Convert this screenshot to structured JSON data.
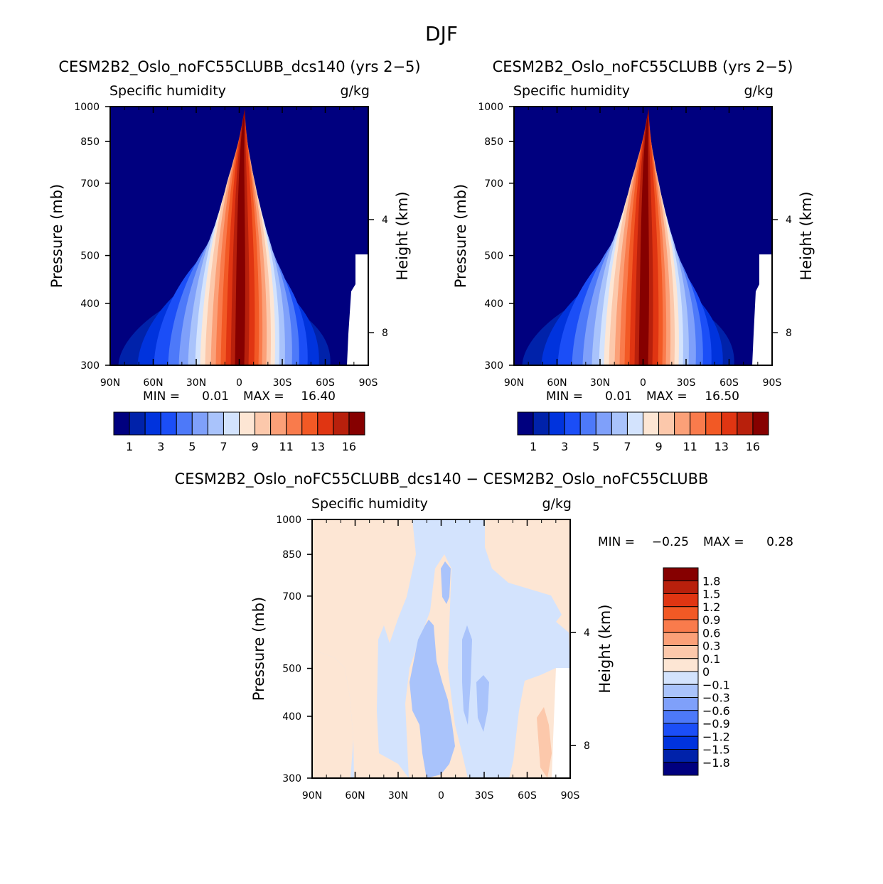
{
  "figure": {
    "season": "DJF"
  },
  "chart_data": [
    {
      "id": "panel-a",
      "type": "contour",
      "title": "CESM2B2_Oslo_noFC55CLUBB_dcs140 (yrs 2−5)",
      "left_label": "Specific humidity",
      "units": "g/kg",
      "ylabel": "Pressure (mb)",
      "ylabel_right": "Height (km)",
      "x_ticks": [
        "90N",
        "60N",
        "30N",
        "0",
        "30S",
        "60S",
        "90S"
      ],
      "y_ticks": [
        "300",
        "400",
        "500",
        "700",
        "850",
        "1000"
      ],
      "y2_ticks": [
        "8",
        "4"
      ],
      "xlim": [
        90,
        -90
      ],
      "ylim": [
        1000,
        300
      ],
      "stats": {
        "min_label": "MIN =",
        "min": "0.01",
        "max_label": "MAX =",
        "max": "16.40"
      },
      "colorbar_labels": [
        "1",
        "3",
        "5",
        "7",
        "9",
        "11",
        "13",
        "16"
      ],
      "peak": {
        "lat": 0,
        "p": 1000,
        "value": 16.4
      }
    },
    {
      "id": "panel-b",
      "type": "contour",
      "title": "CESM2B2_Oslo_noFC55CLUBB (yrs 2−5)",
      "left_label": "Specific humidity",
      "units": "g/kg",
      "ylabel": "Pressure (mb)",
      "ylabel_right": "Height (km)",
      "x_ticks": [
        "90N",
        "60N",
        "30N",
        "0",
        "30S",
        "60S",
        "90S"
      ],
      "y_ticks": [
        "300",
        "400",
        "500",
        "700",
        "850",
        "1000"
      ],
      "y2_ticks": [
        "8",
        "4"
      ],
      "xlim": [
        90,
        -90
      ],
      "ylim": [
        1000,
        300
      ],
      "stats": {
        "min_label": "MIN =",
        "min": "0.01",
        "max_label": "MAX =",
        "max": "16.50"
      },
      "colorbar_labels": [
        "1",
        "3",
        "5",
        "7",
        "9",
        "11",
        "13",
        "16"
      ],
      "peak": {
        "lat": 0,
        "p": 1000,
        "value": 16.5
      }
    },
    {
      "id": "panel-diff",
      "type": "contour",
      "title": "CESM2B2_Oslo_noFC55CLUBB_dcs140 − CESM2B2_Oslo_noFC55CLUBB",
      "left_label": "Specific humidity",
      "units": "g/kg",
      "ylabel": "Pressure (mb)",
      "ylabel_right": "Height (km)",
      "x_ticks": [
        "90N",
        "60N",
        "30N",
        "0",
        "30S",
        "60S",
        "90S"
      ],
      "y_ticks": [
        "300",
        "400",
        "500",
        "700",
        "850",
        "1000"
      ],
      "y2_ticks": [
        "8",
        "4"
      ],
      "xlim": [
        90,
        -90
      ],
      "ylim": [
        1000,
        300
      ],
      "stats": {
        "min_label": "MIN =",
        "min": "−0.25",
        "max_label": "MAX =",
        "max": "0.28"
      },
      "colorbar_labels": [
        "1.8",
        "1.5",
        "1.2",
        "0.9",
        "0.6",
        "0.3",
        "0.1",
        "0",
        "−0.1",
        "−0.3",
        "−0.6",
        "−0.9",
        "−1.2",
        "−1.5",
        "−1.8"
      ]
    }
  ],
  "colors": {
    "sequential": [
      "#00007f",
      "#0022aa",
      "#0033dd",
      "#1b4ef7",
      "#4d79f9",
      "#7fa0fa",
      "#a9c3fb",
      "#d3e3fd",
      "#fde6d4",
      "#fcc8ab",
      "#fba078",
      "#f97b4c",
      "#f25925",
      "#e03512",
      "#b8200c",
      "#860000"
    ],
    "diverging": [
      "#860000",
      "#b8200c",
      "#e03512",
      "#f25925",
      "#f97b4c",
      "#fba078",
      "#fcc8ab",
      "#fde6d4",
      "#d3e3fd",
      "#a9c3fb",
      "#7fa0fa",
      "#4d79f9",
      "#1b4ef7",
      "#0033dd",
      "#0022aa",
      "#00007f"
    ]
  }
}
